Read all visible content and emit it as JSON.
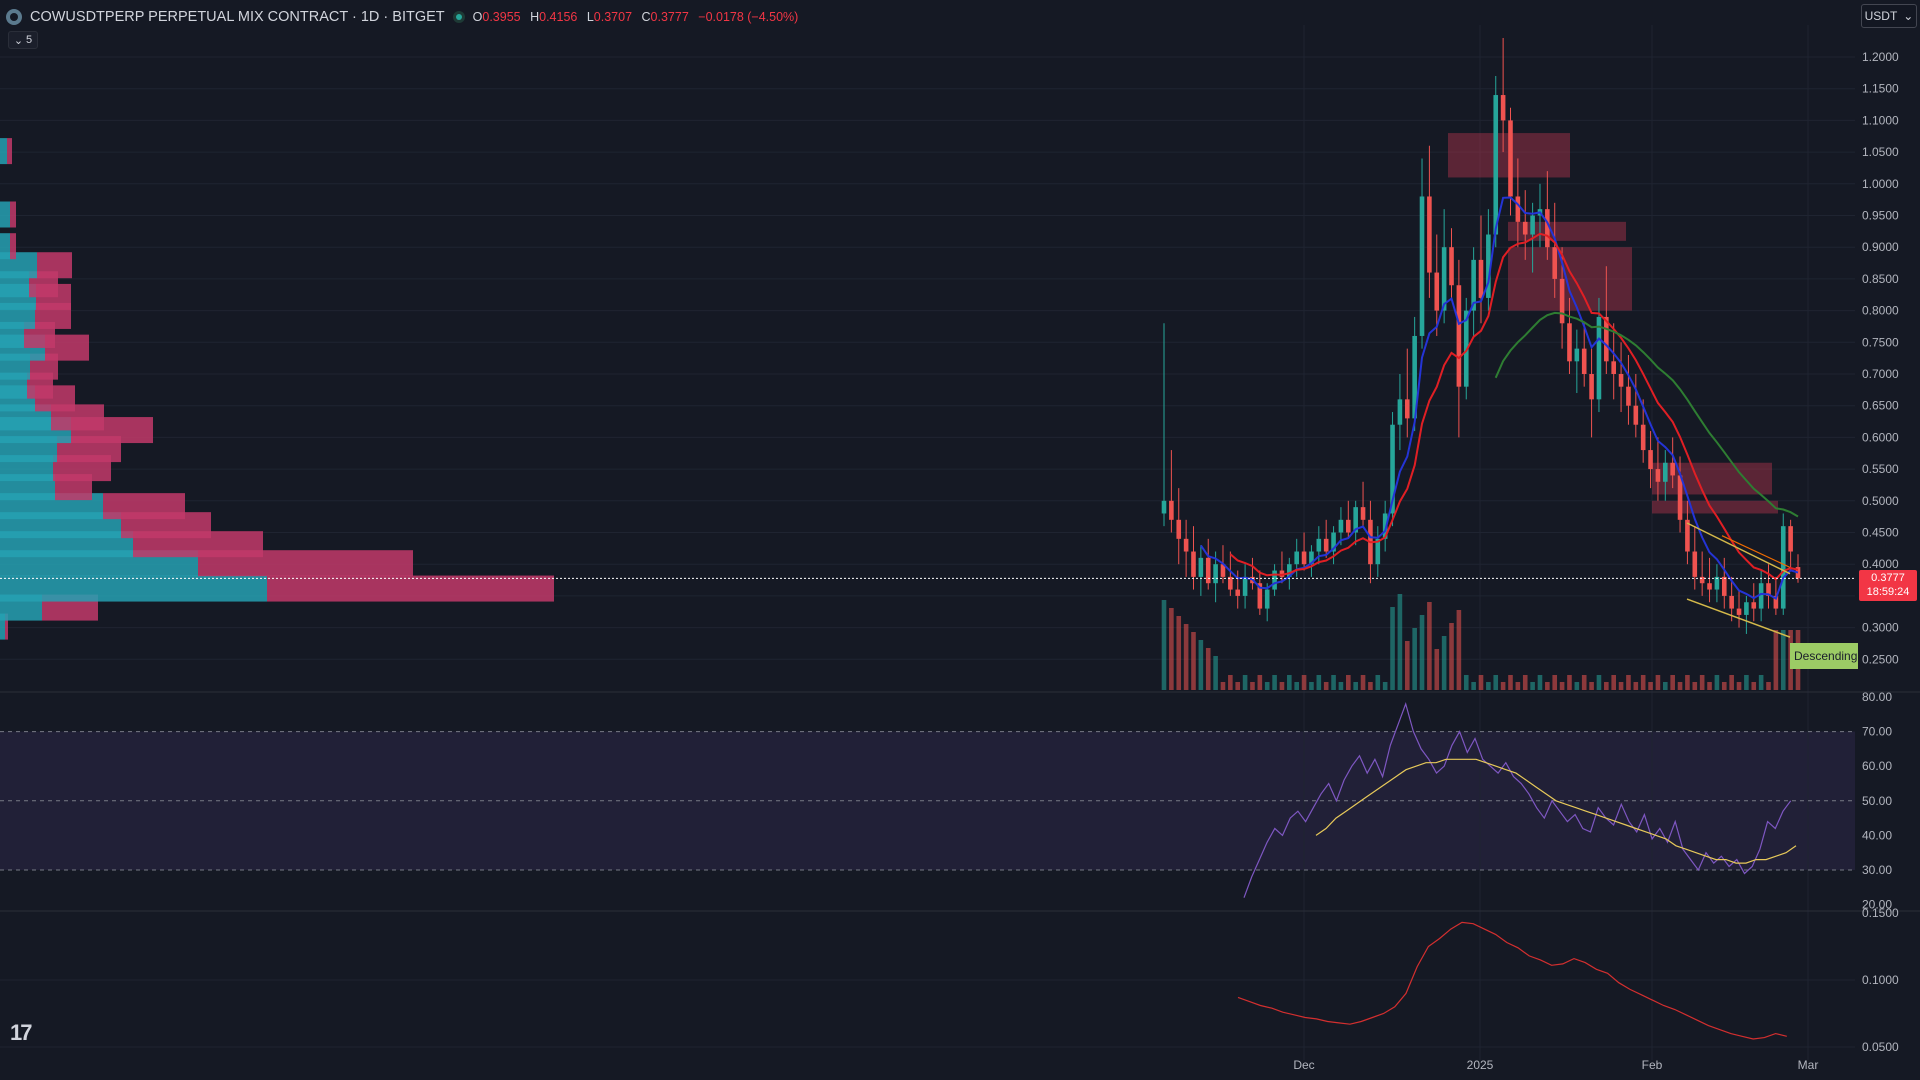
{
  "header": {
    "symbol": "COWUSDTPERP PERPETUAL MIX CONTRACT · 1D · BITGET",
    "open_label": "O",
    "open": "0.3955",
    "high_label": "H",
    "high": "0.4156",
    "low_label": "L",
    "low": "0.3707",
    "close_label": "C",
    "close": "0.3777",
    "change": "−0.0178 (−4.50%)",
    "indicator_count": "5",
    "currency": "USDT"
  },
  "price_axis": {
    "ticks": [
      "1.2000",
      "1.1500",
      "1.1000",
      "1.0500",
      "1.0000",
      "0.9500",
      "0.9000",
      "0.8500",
      "0.8000",
      "0.7500",
      "0.7000",
      "0.6500",
      "0.6000",
      "0.5500",
      "0.5000",
      "0.4500",
      "0.4000",
      "0.3500",
      "0.3000",
      "0.2500"
    ],
    "current_price": "0.3777",
    "countdown": "18:59:24"
  },
  "rsi_axis": {
    "ticks": [
      "80.00",
      "70.00",
      "60.00",
      "50.00",
      "40.00",
      "30.00",
      "20.00"
    ]
  },
  "third_axis": {
    "ticks": [
      "0.1500",
      "0.1000",
      "0.0500"
    ]
  },
  "time_axis": {
    "ticks": [
      "Dec",
      "2025",
      "Feb",
      "Mar"
    ]
  },
  "pattern_label": "Descending",
  "colors": {
    "up": "#26a69a",
    "down": "#ef5350",
    "bg": "#151924",
    "ema_fast": "#2434d6",
    "ema_mid": "#e01f24",
    "ema_slow": "#2e7d32",
    "rsi": "#7e57c2",
    "rsi_ma": "#e7c95a"
  },
  "chart_data": {
    "type": "candlestick",
    "price_range": [
      0.2,
      1.25
    ],
    "rsi_range": [
      20,
      80
    ],
    "rsi_levels": [
      70,
      50,
      30
    ],
    "third_range": [
      0.05,
      0.15
    ],
    "candles": [
      [
        0.48,
        0.78,
        0.46,
        0.5
      ],
      [
        0.5,
        0.58,
        0.45,
        0.47
      ],
      [
        0.47,
        0.52,
        0.4,
        0.44
      ],
      [
        0.44,
        0.47,
        0.38,
        0.42
      ],
      [
        0.42,
        0.46,
        0.36,
        0.38
      ],
      [
        0.38,
        0.43,
        0.35,
        0.41
      ],
      [
        0.41,
        0.44,
        0.36,
        0.37
      ],
      [
        0.37,
        0.42,
        0.34,
        0.4
      ],
      [
        0.4,
        0.43,
        0.37,
        0.38
      ],
      [
        0.38,
        0.42,
        0.35,
        0.36
      ],
      [
        0.36,
        0.39,
        0.33,
        0.35
      ],
      [
        0.35,
        0.4,
        0.33,
        0.38
      ],
      [
        0.38,
        0.41,
        0.36,
        0.37
      ],
      [
        0.37,
        0.39,
        0.32,
        0.33
      ],
      [
        0.33,
        0.37,
        0.31,
        0.36
      ],
      [
        0.36,
        0.4,
        0.35,
        0.39
      ],
      [
        0.39,
        0.42,
        0.37,
        0.38
      ],
      [
        0.38,
        0.41,
        0.36,
        0.4
      ],
      [
        0.4,
        0.44,
        0.38,
        0.42
      ],
      [
        0.42,
        0.45,
        0.39,
        0.4
      ],
      [
        0.4,
        0.43,
        0.38,
        0.42
      ],
      [
        0.42,
        0.46,
        0.4,
        0.44
      ],
      [
        0.44,
        0.47,
        0.41,
        0.42
      ],
      [
        0.42,
        0.46,
        0.4,
        0.45
      ],
      [
        0.45,
        0.49,
        0.43,
        0.47
      ],
      [
        0.47,
        0.5,
        0.44,
        0.45
      ],
      [
        0.45,
        0.5,
        0.43,
        0.49
      ],
      [
        0.49,
        0.53,
        0.46,
        0.47
      ],
      [
        0.47,
        0.5,
        0.37,
        0.4
      ],
      [
        0.4,
        0.46,
        0.38,
        0.44
      ],
      [
        0.44,
        0.5,
        0.42,
        0.48
      ],
      [
        0.48,
        0.64,
        0.46,
        0.62
      ],
      [
        0.62,
        0.7,
        0.58,
        0.66
      ],
      [
        0.66,
        0.74,
        0.6,
        0.63
      ],
      [
        0.63,
        0.79,
        0.61,
        0.76
      ],
      [
        0.76,
        1.04,
        0.74,
        0.98
      ],
      [
        0.98,
        1.06,
        0.82,
        0.86
      ],
      [
        0.86,
        0.92,
        0.76,
        0.8
      ],
      [
        0.8,
        0.96,
        0.78,
        0.9
      ],
      [
        0.9,
        0.93,
        0.82,
        0.84
      ],
      [
        0.84,
        0.88,
        0.6,
        0.68
      ],
      [
        0.68,
        0.82,
        0.66,
        0.8
      ],
      [
        0.8,
        0.9,
        0.76,
        0.88
      ],
      [
        0.88,
        0.95,
        0.78,
        0.82
      ],
      [
        0.82,
        0.96,
        0.8,
        0.92
      ],
      [
        0.92,
        1.17,
        0.9,
        1.14
      ],
      [
        1.14,
        1.23,
        1.05,
        1.1
      ],
      [
        1.1,
        1.12,
        0.95,
        0.98
      ],
      [
        0.98,
        1.04,
        0.9,
        0.94
      ],
      [
        0.94,
        0.99,
        0.88,
        0.92
      ],
      [
        0.92,
        0.97,
        0.86,
        0.95
      ],
      [
        0.95,
        1.0,
        0.9,
        0.96
      ],
      [
        0.96,
        1.02,
        0.88,
        0.9
      ],
      [
        0.9,
        0.97,
        0.82,
        0.85
      ],
      [
        0.85,
        0.9,
        0.74,
        0.78
      ],
      [
        0.78,
        0.82,
        0.7,
        0.72
      ],
      [
        0.72,
        0.77,
        0.67,
        0.74
      ],
      [
        0.74,
        0.78,
        0.68,
        0.7
      ],
      [
        0.7,
        0.74,
        0.6,
        0.66
      ],
      [
        0.66,
        0.82,
        0.64,
        0.79
      ],
      [
        0.79,
        0.87,
        0.7,
        0.72
      ],
      [
        0.72,
        0.78,
        0.66,
        0.7
      ],
      [
        0.7,
        0.75,
        0.64,
        0.68
      ],
      [
        0.68,
        0.73,
        0.62,
        0.65
      ],
      [
        0.65,
        0.7,
        0.6,
        0.62
      ],
      [
        0.62,
        0.66,
        0.56,
        0.58
      ],
      [
        0.58,
        0.61,
        0.52,
        0.55
      ],
      [
        0.55,
        0.6,
        0.5,
        0.53
      ],
      [
        0.53,
        0.58,
        0.5,
        0.56
      ],
      [
        0.56,
        0.6,
        0.52,
        0.54
      ],
      [
        0.54,
        0.57,
        0.45,
        0.47
      ],
      [
        0.47,
        0.5,
        0.4,
        0.42
      ],
      [
        0.42,
        0.46,
        0.36,
        0.38
      ],
      [
        0.38,
        0.42,
        0.35,
        0.37
      ],
      [
        0.37,
        0.41,
        0.34,
        0.36
      ],
      [
        0.36,
        0.4,
        0.34,
        0.38
      ],
      [
        0.38,
        0.41,
        0.33,
        0.35
      ],
      [
        0.35,
        0.38,
        0.31,
        0.33
      ],
      [
        0.33,
        0.36,
        0.3,
        0.32
      ],
      [
        0.32,
        0.35,
        0.29,
        0.34
      ],
      [
        0.34,
        0.37,
        0.31,
        0.33
      ],
      [
        0.33,
        0.39,
        0.31,
        0.37
      ],
      [
        0.37,
        0.4,
        0.33,
        0.35
      ],
      [
        0.35,
        0.38,
        0.32,
        0.33
      ],
      [
        0.33,
        0.48,
        0.32,
        0.46
      ],
      [
        0.46,
        0.47,
        0.39,
        0.42
      ],
      [
        0.3955,
        0.4156,
        0.3707,
        0.3777
      ]
    ],
    "rsi": [
      22,
      28,
      33,
      38,
      42,
      40,
      45,
      47,
      44,
      48,
      52,
      55,
      50,
      56,
      60,
      63,
      58,
      62,
      57,
      66,
      72,
      78,
      70,
      65,
      62,
      58,
      60,
      66,
      70,
      64,
      68,
      62,
      60,
      58,
      61,
      57,
      55,
      52,
      48,
      45,
      50,
      47,
      44,
      46,
      42,
      41,
      48,
      45,
      43,
      49,
      44,
      41,
      46,
      39,
      42,
      38,
      44,
      36,
      33,
      30,
      35,
      32,
      34,
      31,
      33,
      29,
      31,
      36,
      44,
      42,
      47,
      50
    ],
    "rsi_ma": [
      40,
      42,
      45,
      47,
      49,
      51,
      53,
      55,
      57,
      59,
      60,
      61,
      61,
      62,
      62,
      62,
      62,
      61,
      60,
      59,
      58,
      56,
      54,
      52,
      50,
      49,
      48,
      47,
      46,
      45,
      44,
      43,
      42,
      41,
      40,
      39,
      37,
      36,
      35,
      34,
      33,
      33,
      32,
      32,
      33,
      33,
      34,
      35,
      37
    ],
    "third": [
      0.087,
      0.084,
      0.081,
      0.079,
      0.076,
      0.074,
      0.072,
      0.071,
      0.069,
      0.068,
      0.067,
      0.069,
      0.072,
      0.075,
      0.08,
      0.09,
      0.11,
      0.125,
      0.131,
      0.138,
      0.143,
      0.142,
      0.138,
      0.134,
      0.128,
      0.124,
      0.118,
      0.115,
      0.111,
      0.112,
      0.116,
      0.113,
      0.108,
      0.105,
      0.098,
      0.093,
      0.089,
      0.085,
      0.081,
      0.078,
      0.074,
      0.07,
      0.066,
      0.063,
      0.06,
      0.058,
      0.056,
      0.057,
      0.06,
      0.058
    ],
    "volume_profile": [
      [
        0.3,
        5,
        3
      ],
      [
        0.33,
        42,
        56
      ],
      [
        0.36,
        267,
        287
      ],
      [
        0.4,
        198,
        215
      ],
      [
        0.43,
        133,
        130
      ],
      [
        0.46,
        121,
        90
      ],
      [
        0.49,
        103,
        82
      ],
      [
        0.52,
        55,
        37
      ],
      [
        0.55,
        53,
        58
      ],
      [
        0.58,
        57,
        64
      ],
      [
        0.61,
        71,
        82
      ],
      [
        0.63,
        51,
        53
      ],
      [
        0.66,
        35,
        40
      ],
      [
        0.68,
        27,
        26
      ],
      [
        0.71,
        30,
        28
      ],
      [
        0.74,
        45,
        44
      ],
      [
        0.76,
        24,
        31
      ],
      [
        0.79,
        35,
        36
      ],
      [
        0.82,
        36,
        35
      ],
      [
        0.84,
        29,
        29
      ],
      [
        0.87,
        37,
        35
      ],
      [
        0.9,
        10,
        6
      ],
      [
        0.95,
        10,
        6
      ],
      [
        1.05,
        7,
        5
      ]
    ]
  }
}
